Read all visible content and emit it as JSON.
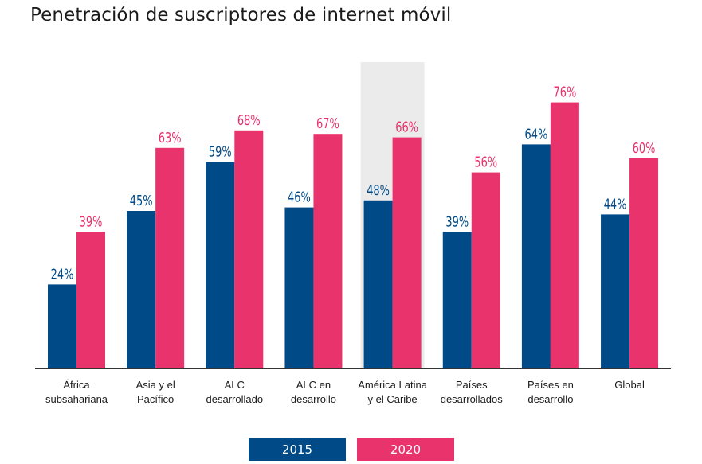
{
  "title": "Penetración de suscriptores de internet móvil",
  "colors": {
    "s2015": "#004B87",
    "s2020": "#E8336D",
    "highlight": "#EBEBEB",
    "axis": "#333333",
    "text": "#1b1b1b"
  },
  "chart_data": {
    "type": "bar",
    "title": "Penetración de suscriptores de internet móvil",
    "xlabel": "",
    "ylabel": "",
    "ylim": [
      0,
      85
    ],
    "grid": false,
    "legend_position": "bottom-center",
    "highlighted_category": "América Latina y el Caribe",
    "categories": [
      [
        "África",
        "subsahariana"
      ],
      [
        "Asia y el",
        "Pacífico"
      ],
      [
        "ALC",
        "desarrollado"
      ],
      [
        "ALC en",
        "desarrollo"
      ],
      [
        "América Latina",
        "y el Caribe"
      ],
      [
        "Países",
        "desarrollados"
      ],
      [
        "Países en",
        "desarrollo"
      ],
      [
        "Global"
      ]
    ],
    "series": [
      {
        "name": "2015",
        "values": [
          24,
          45,
          59,
          46,
          48,
          39,
          64,
          44
        ],
        "labels": [
          "24%",
          "45%",
          "59%",
          "46%",
          "48%",
          "39%",
          "64%",
          "44%"
        ]
      },
      {
        "name": "2020",
        "values": [
          39,
          63,
          68,
          67,
          66,
          56,
          76,
          60
        ],
        "labels": [
          "39%",
          "63%",
          "68%",
          "67%",
          "66%",
          "56%",
          "76%",
          "60%"
        ]
      }
    ]
  },
  "legend": {
    "label_2015": "2015",
    "label_2020": "2020"
  }
}
